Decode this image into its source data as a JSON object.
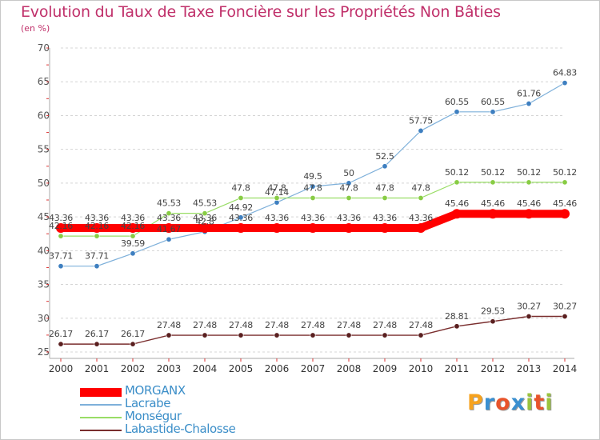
{
  "header": {
    "title": "Evolution du Taux de Taxe Foncière sur les Propriétés Non Bâties",
    "subtitle": "(en %)"
  },
  "logo": {
    "letters": [
      "P",
      "r",
      "o",
      "x",
      "i",
      "t",
      "i"
    ],
    "colors": [
      "#f6a21e",
      "#3a8fd0",
      "#e8542b",
      "#3a8fd0",
      "#9ac33c",
      "#e8542b",
      "#9ac33c"
    ]
  },
  "chart_data": {
    "type": "line",
    "title": "Evolution du Taux de Taxe Foncière sur les Propriétés Non Bâties",
    "ylabel": "(en %)",
    "xlabel": "",
    "x": [
      "2000",
      "2001",
      "2002",
      "2003",
      "2004",
      "2005",
      "2006",
      "2007",
      "2008",
      "2009",
      "2010",
      "2011",
      "2012",
      "2013",
      "2014"
    ],
    "ylim": [
      25,
      70
    ],
    "yticks": [
      25,
      30,
      35,
      40,
      45,
      50,
      55,
      60,
      65,
      70
    ],
    "grid": "horizontal dashed",
    "legend": "bottom-left",
    "series": [
      {
        "name": "MORGANX",
        "color": "#ff0000",
        "values": [
          43.36,
          43.36,
          43.36,
          43.36,
          43.36,
          43.36,
          43.36,
          43.36,
          43.36,
          43.36,
          43.36,
          45.46,
          45.46,
          45.46,
          45.46
        ],
        "labels": [
          "43.36",
          "43.36",
          "43.36",
          "43.36",
          "43.36",
          "43.36",
          "43.36",
          "43.36",
          "43.36",
          "43.36",
          "43.36",
          "45.46",
          "45.46",
          "45.46",
          "45.46"
        ]
      },
      {
        "name": "Lacrabe",
        "color": "#7eb0da",
        "values": [
          37.71,
          37.71,
          39.59,
          41.67,
          42.8,
          44.92,
          47.14,
          49.5,
          50,
          52.5,
          57.75,
          60.55,
          60.55,
          61.76,
          64.83
        ],
        "labels": [
          "37.71",
          "37.71",
          "39.59",
          "41.67",
          "42.8",
          "44.92",
          "47.14",
          "49.5",
          "50",
          "52.5",
          "57.75",
          "60.55",
          "60.55",
          "61.76",
          "64.83"
        ]
      },
      {
        "name": "Monségur",
        "color": "#99dd66",
        "values": [
          42.16,
          42.16,
          42.16,
          45.53,
          45.53,
          47.8,
          47.8,
          47.8,
          47.8,
          47.8,
          47.8,
          50.12,
          50.12,
          50.12,
          50.12
        ],
        "labels": [
          "42.16",
          "42.16",
          "42.16",
          "45.53",
          "45.53",
          "47.8",
          "47.8",
          "47.8",
          "47.8",
          "47.8",
          "47.8",
          "50.12",
          "50.12",
          "50.12",
          "50.12"
        ]
      },
      {
        "name": "Labastide-Chalosse",
        "color": "#7a2e2e",
        "values": [
          26.17,
          26.17,
          26.17,
          27.48,
          27.48,
          27.48,
          27.48,
          27.48,
          27.48,
          27.48,
          27.48,
          28.81,
          29.53,
          30.27,
          30.27
        ],
        "labels": [
          "26.17",
          "26.17",
          "26.17",
          "27.48",
          "27.48",
          "27.48",
          "27.48",
          "27.48",
          "27.48",
          "27.48",
          "27.48",
          "28.81",
          "29.53",
          "30.27",
          "30.27"
        ]
      }
    ]
  }
}
